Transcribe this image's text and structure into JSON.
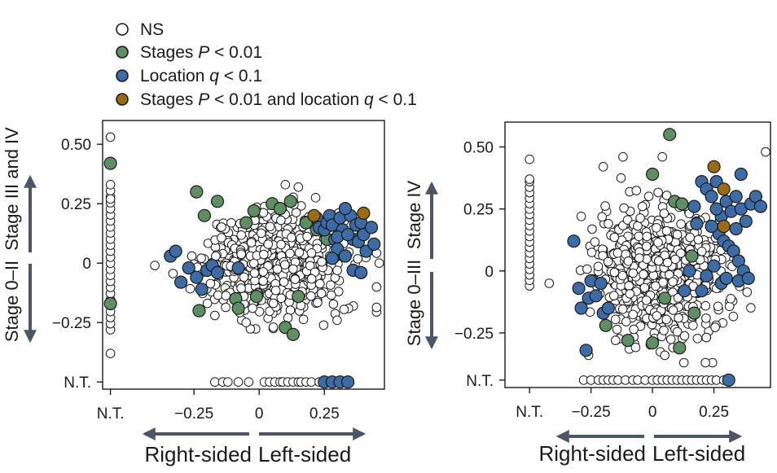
{
  "legend": {
    "items": [
      {
        "key": "ns",
        "parts": [
          {
            "t": "NS",
            "i": false
          }
        ],
        "color": "#ffffff"
      },
      {
        "key": "stages",
        "parts": [
          {
            "t": "Stages ",
            "i": false
          },
          {
            "t": "P",
            "i": true
          },
          {
            "t": " < 0.01",
            "i": false
          }
        ],
        "color": "#5e8f62"
      },
      {
        "key": "location",
        "parts": [
          {
            "t": "Location ",
            "i": false
          },
          {
            "t": "q",
            "i": true
          },
          {
            "t": " < 0.1",
            "i": false
          }
        ],
        "color": "#3d6ba6"
      },
      {
        "key": "both",
        "parts": [
          {
            "t": "Stages ",
            "i": false
          },
          {
            "t": "P",
            "i": true
          },
          {
            "t": " < 0.01 and location ",
            "i": false
          },
          {
            "t": "q",
            "i": true
          },
          {
            "t": " < 0.1",
            "i": false
          }
        ],
        "color": "#9a6b12"
      }
    ]
  },
  "panels": [
    {
      "id": "left",
      "ylabel_upper": "Stage III and IV",
      "ylabel_lower": "Stage 0–II",
      "xlabel_left": "Right-sided",
      "xlabel_right": "Left-sided",
      "y_tick_labels": [
        "0.50",
        "0.25",
        "0",
        "−0.25",
        "N.T."
      ],
      "x_tick_labels": [
        "N.T.",
        "−0.25",
        "0",
        "0.25"
      ]
    },
    {
      "id": "right",
      "ylabel_upper": "Stage IV",
      "ylabel_lower": "Stage 0–III",
      "xlabel_left": "Right-sided",
      "xlabel_right": "Left-sided",
      "y_tick_labels": [
        "0.50",
        "0.25",
        "0",
        "−0.25",
        "N.T."
      ],
      "x_tick_labels": [
        "N.T.",
        "−0.25",
        "0",
        "0.25"
      ]
    }
  ],
  "chart_data": [
    {
      "type": "scatter",
      "title": "",
      "xlabel": "Right-sided Left-sided",
      "ylabel": "Stage 0–II Stage III and IV",
      "xlim": [
        -0.6,
        0.48
      ],
      "ylim": [
        -0.53,
        0.6
      ],
      "not_tested_value": -0.5,
      "x_not_tested_value": -0.57,
      "grid": false,
      "legend_position": "top-left (above panels)",
      "series": [
        {
          "category": "stages",
          "points": [
            [
              -0.57,
              0.42
            ],
            [
              -0.57,
              -0.17
            ],
            [
              -0.24,
              0.3
            ],
            [
              -0.23,
              -0.2
            ],
            [
              -0.21,
              0.2
            ],
            [
              -0.16,
              0.26
            ],
            [
              -0.09,
              -0.15
            ],
            [
              -0.08,
              -0.19
            ],
            [
              -0.05,
              0.17
            ],
            [
              -0.02,
              0.22
            ],
            [
              0.05,
              0.25
            ],
            [
              0.08,
              0.23
            ],
            [
              0.12,
              0.26
            ],
            [
              0.1,
              -0.27
            ],
            [
              0.13,
              -0.3
            ],
            [
              0.15,
              -0.14
            ],
            [
              0.18,
              0.17
            ],
            [
              0.22,
              0.14
            ],
            [
              0.26,
              0.1
            ],
            [
              -0.01,
              -0.14
            ]
          ]
        },
        {
          "category": "location",
          "points": [
            [
              -0.34,
              0.03
            ],
            [
              -0.32,
              0.05
            ],
            [
              -0.3,
              -0.08
            ],
            [
              -0.27,
              -0.02
            ],
            [
              -0.24,
              -0.06
            ],
            [
              -0.22,
              -0.11
            ],
            [
              -0.2,
              -0.03
            ],
            [
              -0.18,
              -0.01
            ],
            [
              -0.16,
              -0.04
            ],
            [
              -0.08,
              -0.02
            ],
            [
              0.22,
              0.19
            ],
            [
              0.23,
              0.15
            ],
            [
              0.25,
              0.14
            ],
            [
              0.26,
              0.17
            ],
            [
              0.27,
              0.2
            ],
            [
              0.28,
              0.16
            ],
            [
              0.29,
              0.1
            ],
            [
              0.3,
              0.06
            ],
            [
              0.31,
              0.19
            ],
            [
              0.32,
              0.14
            ],
            [
              0.33,
              0.03
            ],
            [
              0.35,
              0.2
            ],
            [
              0.36,
              0.1
            ],
            [
              0.37,
              0.16
            ],
            [
              0.38,
              0.09
            ],
            [
              0.39,
              0.17
            ],
            [
              0.4,
              0.12
            ],
            [
              0.41,
              0.05
            ],
            [
              0.28,
              0.02
            ],
            [
              0.33,
              0.23
            ],
            [
              0.36,
              -0.03
            ],
            [
              0.39,
              -0.04
            ],
            [
              0.43,
              0.15
            ],
            [
              0.44,
              0.08
            ],
            [
              0.3,
              0.11
            ],
            [
              0.34,
              0.12
            ],
            [
              0.25,
              -0.5
            ],
            [
              0.28,
              -0.5
            ],
            [
              0.31,
              -0.5
            ],
            [
              0.34,
              -0.5
            ]
          ]
        },
        {
          "category": "both",
          "points": [
            [
              0.21,
              0.2
            ],
            [
              0.4,
              0.21
            ]
          ]
        },
        {
          "category": "ns",
          "seed": 7,
          "count": 620,
          "center": [
            0.06,
            0.0
          ],
          "spread": [
            0.13,
            0.1
          ],
          "edge_points": [
            [
              -0.57,
              0.53
            ],
            [
              -0.57,
              0.27
            ],
            [
              -0.57,
              -0.38
            ],
            [
              -0.4,
              -0.01
            ],
            [
              0.46,
              0.0
            ],
            [
              0.1,
              0.33
            ],
            [
              0.15,
              0.32
            ],
            [
              -0.17,
              -0.22
            ],
            [
              -0.05,
              -0.25
            ],
            [
              0.11,
              -0.23
            ]
          ],
          "not_tested_x_count": 22,
          "not_tested_x_range": [
            -0.55,
            -0.53
          ],
          "not_tested_y_range": [
            -0.28,
            0.33
          ],
          "not_tested_y_count": 25,
          "nt_row_x": [
            -0.17,
            -0.14,
            -0.12,
            -0.08,
            -0.04,
            0.02,
            0.04,
            0.06,
            0.08,
            0.09,
            0.11,
            0.13,
            0.15,
            0.16,
            0.18,
            0.2,
            0.23
          ]
        }
      ]
    },
    {
      "type": "scatter",
      "title": "",
      "xlabel": "Right-sided Left-sided",
      "ylabel": "Stage 0–III Stage IV",
      "xlim": [
        -0.6,
        0.48
      ],
      "ylim": [
        -0.47,
        0.6
      ],
      "not_tested_value": -0.44,
      "x_not_tested_value": -0.5,
      "grid": false,
      "legend_position": "top-left (above panels)",
      "series": [
        {
          "category": "stages",
          "points": [
            [
              0.07,
              0.55
            ],
            [
              0.0,
              0.39
            ],
            [
              0.09,
              0.28
            ],
            [
              0.12,
              0.27
            ],
            [
              -0.19,
              -0.22
            ],
            [
              -0.1,
              -0.28
            ],
            [
              0.0,
              -0.29
            ],
            [
              0.11,
              -0.31
            ],
            [
              0.17,
              -0.17
            ],
            [
              0.05,
              -0.11
            ],
            [
              0.16,
              0.06
            ]
          ]
        },
        {
          "category": "location",
          "points": [
            [
              -0.32,
              0.12
            ],
            [
              -0.3,
              -0.07
            ],
            [
              -0.29,
              -0.15
            ],
            [
              -0.26,
              -0.11
            ],
            [
              -0.25,
              -0.04
            ],
            [
              -0.23,
              -0.1
            ],
            [
              -0.21,
              -0.05
            ],
            [
              -0.2,
              -0.17
            ],
            [
              -0.18,
              -0.15
            ],
            [
              -0.27,
              -0.32
            ],
            [
              0.2,
              0.36
            ],
            [
              0.22,
              0.33
            ],
            [
              0.24,
              0.3
            ],
            [
              0.26,
              0.36
            ],
            [
              0.28,
              0.22
            ],
            [
              0.3,
              0.28
            ],
            [
              0.32,
              0.24
            ],
            [
              0.34,
              0.3
            ],
            [
              0.36,
              0.25
            ],
            [
              0.38,
              0.2
            ],
            [
              0.4,
              0.27
            ],
            [
              0.42,
              0.3
            ],
            [
              0.44,
              0.26
            ],
            [
              0.27,
              0.15
            ],
            [
              0.29,
              0.12
            ],
            [
              0.31,
              0.1
            ],
            [
              0.33,
              0.08
            ],
            [
              0.35,
              0.04
            ],
            [
              0.37,
              0.0
            ],
            [
              0.25,
              0.02
            ],
            [
              0.22,
              -0.02
            ],
            [
              0.28,
              -0.05
            ],
            [
              0.3,
              -0.03
            ],
            [
              0.35,
              -0.04
            ],
            [
              0.39,
              -0.03
            ],
            [
              0.26,
              0.25
            ],
            [
              0.24,
              0.18
            ],
            [
              0.34,
              0.17
            ],
            [
              0.18,
              0.19
            ],
            [
              0.17,
              0.26
            ],
            [
              0.36,
              0.39
            ],
            [
              0.31,
              -0.44
            ],
            [
              0.15,
              0.0
            ],
            [
              0.13,
              -0.08
            ],
            [
              0.2,
              -0.08
            ]
          ]
        },
        {
          "category": "both",
          "points": [
            [
              0.25,
              0.42
            ],
            [
              0.29,
              0.33
            ],
            [
              0.29,
              0.18
            ]
          ]
        },
        {
          "category": "ns",
          "seed": 19,
          "count": 640,
          "center": [
            0.03,
            0.0
          ],
          "spread": [
            0.13,
            0.13
          ],
          "edge_points": [
            [
              -0.5,
              0.45
            ],
            [
              -0.5,
              0.37
            ],
            [
              -0.42,
              -0.05
            ],
            [
              0.46,
              0.48
            ],
            [
              -0.12,
              0.46
            ],
            [
              0.04,
              0.46
            ],
            [
              -0.29,
              0.22
            ],
            [
              -0.2,
              0.42
            ],
            [
              -0.26,
              -0.34
            ],
            [
              -0.15,
              -0.28
            ],
            [
              0.05,
              -0.34
            ]
          ],
          "not_tested_x_count": 20,
          "not_tested_x_range": [
            -0.51,
            -0.49
          ],
          "not_tested_y_range": [
            -0.06,
            0.36
          ],
          "not_tested_y_count": 20,
          "nt_row_x": [
            -0.28,
            -0.25,
            -0.22,
            -0.2,
            -0.18,
            -0.16,
            -0.14,
            -0.11,
            -0.08,
            -0.06,
            -0.03,
            0.0,
            0.02,
            0.04,
            0.06,
            0.08,
            0.1,
            0.12,
            0.14,
            0.16,
            0.18,
            0.2,
            0.22,
            0.24,
            0.26,
            0.29
          ]
        }
      ]
    }
  ]
}
